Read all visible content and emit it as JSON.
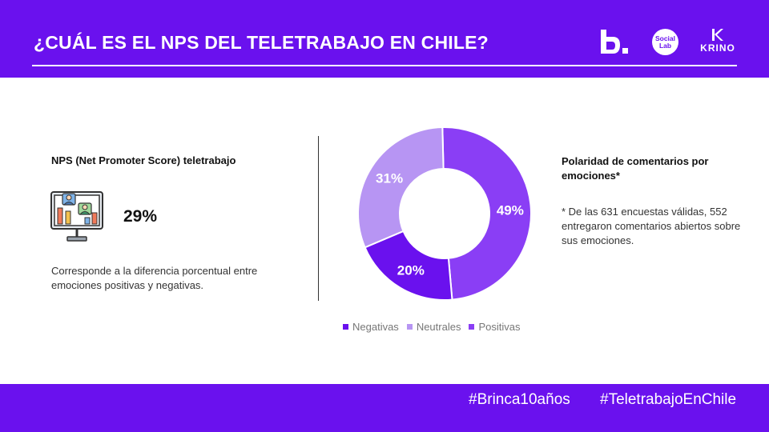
{
  "header": {
    "title": "¿CUÁL ES EL NPS DEL TELETRABAJO EN CHILE?",
    "logos": {
      "brinca": "B.",
      "social_lab_line1": "Social",
      "social_lab_line2": "Lab",
      "krino": "KRINO"
    }
  },
  "nps": {
    "heading": "NPS (Net Promoter Score) teletrabajo",
    "value": "29%",
    "description": "Corresponde a la diferencia porcentual entre emociones positivas y negativas.",
    "icon": "video-call-monitor-icon"
  },
  "polaridad": {
    "heading": "Polaridad de comentarios por emociones*",
    "note": "* De las 631 encuestas válidas, 552 entregaron comentarios abiertos sobre sus emociones."
  },
  "chart_data": {
    "type": "pie",
    "donut": true,
    "categories": [
      "Negativas",
      "Neutrales",
      "Positivas"
    ],
    "values": [
      20,
      31,
      49
    ],
    "value_labels": [
      "20%",
      "31%",
      "49%"
    ],
    "colors": [
      "#6a11ee",
      "#b795f3",
      "#8a3ef5"
    ],
    "legend_position": "bottom"
  },
  "footer": {
    "hashtags": [
      "#Brinca10años",
      "#TeletrabajoEnChile"
    ]
  },
  "colors": {
    "brand_purple": "#6a11ee",
    "text_dark": "#111111"
  }
}
